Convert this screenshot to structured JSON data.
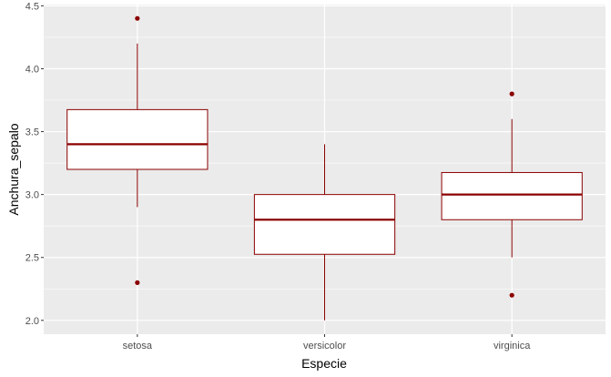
{
  "chart_data": {
    "type": "boxplot",
    "title": "",
    "xlabel": "Especie",
    "ylabel": "Anchura_sepalo",
    "ylim": [
      1.89,
      4.51
    ],
    "yticks": [
      2.0,
      2.5,
      3.0,
      3.5,
      4.0,
      4.5
    ],
    "ytick_labels": [
      "2.0",
      "2.5",
      "3.0",
      "3.5",
      "4.0",
      "4.5"
    ],
    "categories": [
      "setosa",
      "versicolor",
      "virginica"
    ],
    "boxes": [
      {
        "category": "setosa",
        "whisker_low": 2.9,
        "q1": 3.2,
        "median": 3.4,
        "q3": 3.675,
        "whisker_high": 4.2,
        "outliers": [
          4.4,
          2.3
        ]
      },
      {
        "category": "versicolor",
        "whisker_low": 2.0,
        "q1": 2.525,
        "median": 2.8,
        "q3": 3.0,
        "whisker_high": 3.4,
        "outliers": []
      },
      {
        "category": "virginica",
        "whisker_low": 2.5,
        "q1": 2.8,
        "median": 3.0,
        "q3": 3.175,
        "whisker_high": 3.6,
        "outliers": [
          3.8,
          2.2
        ]
      }
    ],
    "grid": true,
    "colors": {
      "panel": "#ebebeb",
      "grid": "#ffffff",
      "box_line": "#8b0000",
      "box_fill": "#ffffff",
      "outlier": "#8b0000"
    }
  }
}
